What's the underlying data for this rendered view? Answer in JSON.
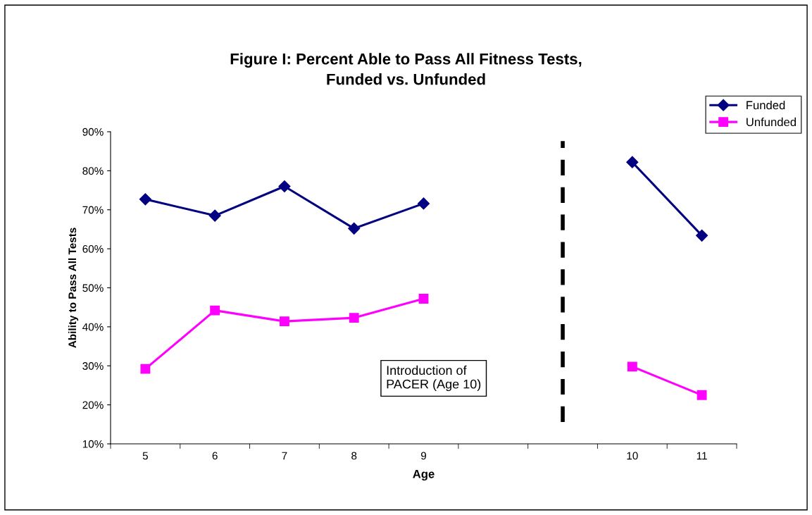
{
  "chart_data": {
    "type": "line",
    "title": "Figure I: Percent Able to Pass All Fitness Tests,\nFunded vs. Unfunded",
    "xlabel": "Age",
    "ylabel": "Ability to Pass All Tests",
    "categories": [
      "5",
      "6",
      "7",
      "8",
      "9",
      null,
      null,
      "10",
      "11"
    ],
    "series": [
      {
        "name": "Funded",
        "color": "#000080",
        "marker": "diamond",
        "values": [
          72.7,
          68.5,
          76.0,
          65.2,
          71.6,
          null,
          null,
          82.2,
          63.4
        ]
      },
      {
        "name": "Unfunded",
        "color": "#ff00ff",
        "marker": "square",
        "values": [
          29.2,
          44.2,
          41.4,
          42.3,
          47.2,
          null,
          null,
          29.8,
          22.5
        ]
      }
    ],
    "ylim": [
      10,
      90
    ],
    "yticks": [
      {
        "value": 10,
        "label": "10%"
      },
      {
        "value": 20,
        "label": "20%"
      },
      {
        "value": 30,
        "label": "30%"
      },
      {
        "value": 40,
        "label": "40%"
      },
      {
        "value": 50,
        "label": "50%"
      },
      {
        "value": 60,
        "label": "60%"
      },
      {
        "value": 70,
        "label": "70%"
      },
      {
        "value": 80,
        "label": "80%"
      },
      {
        "value": 90,
        "label": "90%"
      }
    ],
    "annotations": [
      "Introduction of\nPACER (Age 10)"
    ],
    "legend": "top right",
    "line_style": "solid"
  }
}
